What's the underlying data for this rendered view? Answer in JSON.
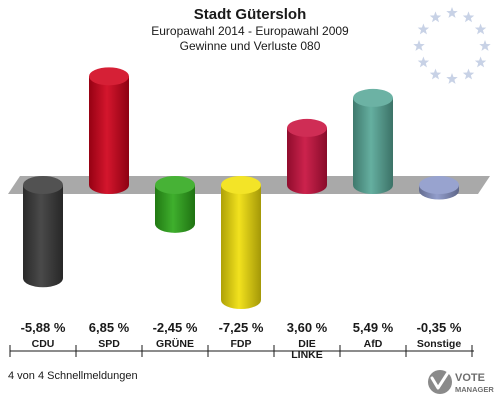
{
  "header": {
    "title": "Stadt Gütersloh",
    "subtitle": "Europawahl 2014 - Europawahl 2009",
    "subtitle2": "Gewinne und Verluste 080"
  },
  "footer": {
    "status": "4 von 4 Schnellmeldungen"
  },
  "logo": {
    "line1": "VOTE",
    "line2": "MANAGER",
    "icon": "vote-manager-logo-icon"
  },
  "eu_flag": {
    "icon": "eu-stars-icon",
    "star_color": "#c8d2e6"
  },
  "chart_data": {
    "type": "bar",
    "categories": [
      "CDU",
      "SPD",
      "GRÜNE",
      "FDP",
      "DIE LINKE",
      "AfD",
      "Sonstige"
    ],
    "category_lines": [
      [
        "CDU"
      ],
      [
        "SPD"
      ],
      [
        "GRÜNE"
      ],
      [
        "FDP"
      ],
      [
        "DIE",
        "LINKE"
      ],
      [
        "AfD"
      ],
      [
        "Sonstige"
      ]
    ],
    "values": [
      -5.88,
      6.85,
      -2.45,
      -7.25,
      3.6,
      5.49,
      -0.35
    ],
    "value_labels": [
      "-5,88 %",
      "6,85 %",
      "-2,45 %",
      "-7,25 %",
      "3,60 %",
      "5,49 %",
      "-0,35 %"
    ],
    "colors": [
      "#3a3a3a",
      "#d0021b",
      "#2ea81b",
      "#f1e00a",
      "#c8103e",
      "#58a898",
      "#8a96c8"
    ],
    "ylim": [
      -7.25,
      6.85
    ],
    "grid": false
  }
}
